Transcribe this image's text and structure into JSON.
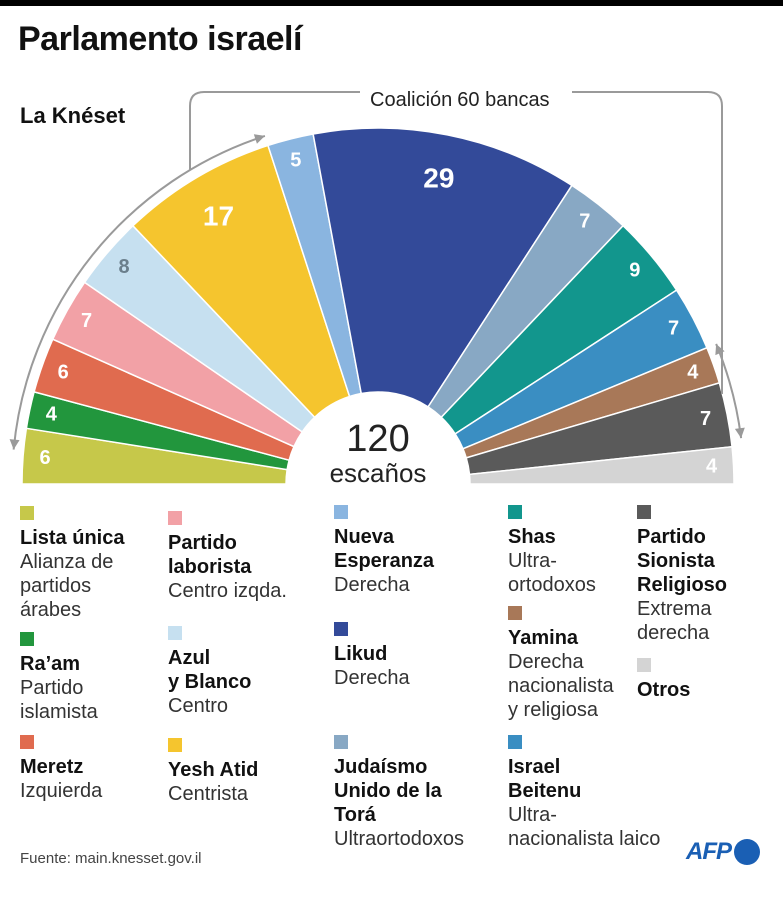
{
  "title": "Parlamento israelí",
  "subtitle": "La Knéset",
  "chart_data": {
    "type": "parliament",
    "title": "Parlamento israelí",
    "subtitle": "La Knéset",
    "total_seats": 120,
    "center_number": "120",
    "center_label": "escaños",
    "coalition": {
      "label": "Coalición",
      "seats_text": "60 bancas",
      "seats": 60
    },
    "parties": [
      {
        "id": "lista",
        "name": "Lista única",
        "desc": "Alianza de\npartidos\nárabes",
        "seats": 6,
        "color": "#c6c84a",
        "label_color": "#ffffff"
      },
      {
        "id": "raam",
        "name": "Ra’am",
        "desc": "Partido\nislamista",
        "seats": 4,
        "color": "#22963d",
        "label_color": "#ffffff"
      },
      {
        "id": "meretz",
        "name": "Meretz",
        "desc": "Izquierda",
        "seats": 6,
        "color": "#e06b4f",
        "label_color": "#ffffff"
      },
      {
        "id": "laborista",
        "name": "Partido\nlaborista",
        "desc": "Centro izqda.",
        "seats": 7,
        "color": "#f2a1a6",
        "label_color": "#ffffff"
      },
      {
        "id": "azul",
        "name": "Azul\ny Blanco",
        "desc": "Centro",
        "seats": 8,
        "color": "#c6e0f0",
        "label_color": "#6b7f8c"
      },
      {
        "id": "yesh",
        "name": "Yesh Atid",
        "desc": "Centrista",
        "seats": 17,
        "color": "#f5c52e",
        "label_color": "#ffffff"
      },
      {
        "id": "nueva",
        "name": "Nueva\nEsperanza",
        "desc": "Derecha",
        "seats": 5,
        "color": "#8ab5e0",
        "label_color": "#ffffff"
      },
      {
        "id": "likud",
        "name": "Likud",
        "desc": "Derecha",
        "seats": 29,
        "color": "#334a99",
        "label_color": "#ffffff"
      },
      {
        "id": "tora",
        "name": "Judaísmo\nUnido de la\nTorá",
        "desc": "Ultraortodoxos",
        "seats": 7,
        "color": "#88a8c4",
        "label_color": "#ffffff"
      },
      {
        "id": "shas",
        "name": "Shas",
        "desc": "Ultra-\nortodoxos",
        "seats": 9,
        "color": "#12968d",
        "label_color": "#ffffff"
      },
      {
        "id": "beitenu",
        "name": "Israel\nBeitenu",
        "desc": "Ultra-\nnacionalista laico",
        "seats": 7,
        "color": "#3a8ec2",
        "label_color": "#ffffff"
      },
      {
        "id": "yamina",
        "name": "Yamina",
        "desc": "Derecha\nnacionalista\ny religiosa",
        "seats": 4,
        "color": "#a87858",
        "label_color": "#ffffff"
      },
      {
        "id": "sionista",
        "name": "Partido\nSionista\nReligioso",
        "desc": "Extrema\nderecha",
        "seats": 7,
        "color": "#5a5a5a",
        "label_color": "#ffffff"
      },
      {
        "id": "otros",
        "name": "Otros",
        "desc": "",
        "seats": 4,
        "color": "#d4d4d4",
        "label_color": "#ffffff"
      }
    ]
  },
  "source": "Fuente: main.knesset.gov.il",
  "logo": "AFP"
}
